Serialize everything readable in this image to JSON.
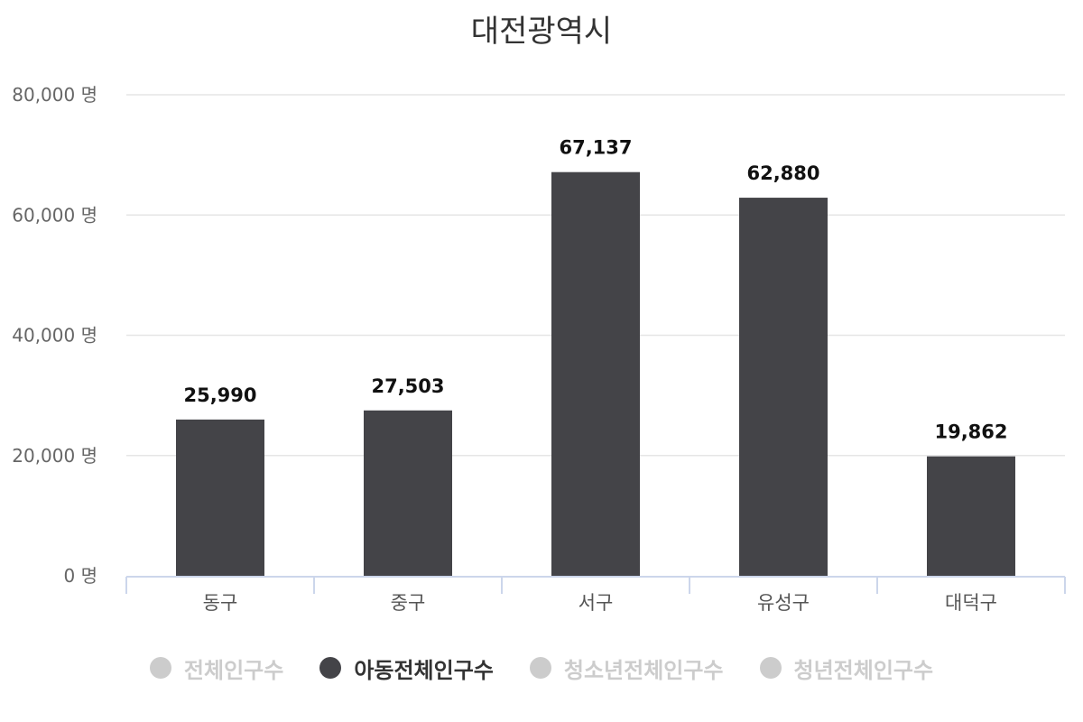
{
  "chart_data": {
    "type": "bar",
    "title": "대전광역시",
    "categories": [
      "동구",
      "중구",
      "서구",
      "유성구",
      "대덕구"
    ],
    "series": [
      {
        "name": "아동전체인구수",
        "values": [
          25990,
          27503,
          67137,
          62880,
          19862
        ]
      }
    ],
    "value_labels": [
      "25,990",
      "27,503",
      "67,137",
      "62,880",
      "19,862"
    ],
    "ylim": [
      0,
      80000
    ],
    "yticks": [
      0,
      20000,
      40000,
      60000,
      80000
    ],
    "ytick_labels": [
      "0 명",
      "20,000 명",
      "40,000 명",
      "60,000 명",
      "80,000 명"
    ],
    "grid": true,
    "bar_color": "#444448",
    "legend_position": "bottom"
  },
  "legend": {
    "items": [
      {
        "label": "전체인구수",
        "active": false
      },
      {
        "label": "아동전체인구수",
        "active": true
      },
      {
        "label": "청소년전체인구수",
        "active": false
      },
      {
        "label": "청년전체인구수",
        "active": false
      }
    ]
  },
  "colors": {
    "active": "#444448",
    "inactive": "#cccccc",
    "axis": "#ccd6eb",
    "grid": "#e6e6e6"
  }
}
